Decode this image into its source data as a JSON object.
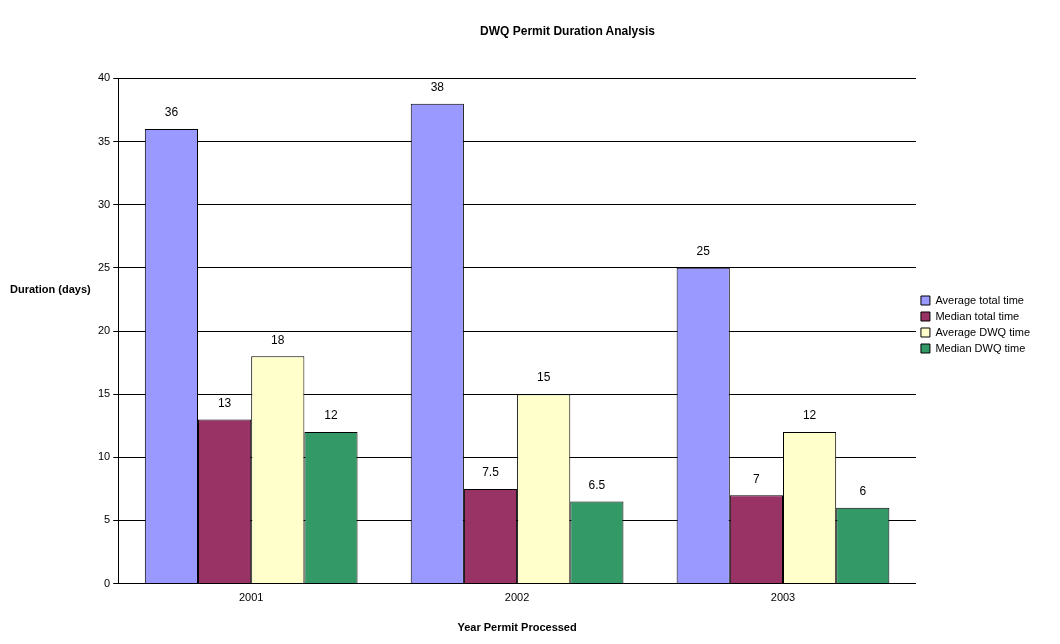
{
  "chart_data": {
    "type": "bar",
    "title": "DWQ Permit Duration Analysis",
    "xlabel": "Year Permit Processed",
    "ylabel": "Duration (days)",
    "categories": [
      "2001",
      "2002",
      "2003"
    ],
    "series": [
      {
        "name": "Average total time",
        "color": "#9999ff",
        "values": [
          36,
          38,
          25
        ]
      },
      {
        "name": "Median total time",
        "color": "#993366",
        "values": [
          13,
          7.5,
          7
        ]
      },
      {
        "name": "Average DWQ time",
        "color": "#ffffcc",
        "values": [
          18,
          15,
          12
        ]
      },
      {
        "name": "Median DWQ time",
        "color": "#339966",
        "values": [
          12,
          6.5,
          6
        ]
      }
    ],
    "ylim": [
      0,
      40
    ],
    "yticks": [
      0,
      5,
      10,
      15,
      20,
      25,
      30,
      35,
      40
    ],
    "grid": "y",
    "legend": "right",
    "data_labels": true
  }
}
